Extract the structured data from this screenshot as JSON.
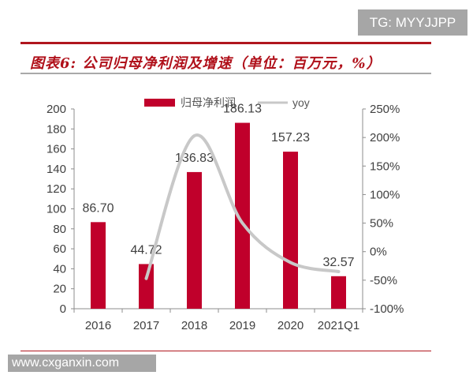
{
  "watermark_top": "TG: MYYJJPP",
  "watermark_bottom": "www.cxganxin.com",
  "colors": {
    "bar": "#c0002b",
    "line": "#c8c8c8",
    "title": "#b0101a"
  },
  "chart_data": {
    "type": "bar+line",
    "title": "图表6: 公司归母净利润及增速（单位：百万元，%）",
    "categories": [
      "2016",
      "2017",
      "2018",
      "2019",
      "2020",
      "2021Q1"
    ],
    "series": [
      {
        "name": "归母净利润",
        "type": "bar",
        "axis": "left",
        "values": [
          86.7,
          44.72,
          136.83,
          186.13,
          157.23,
          32.57
        ],
        "labels": [
          "86.70",
          "44.72",
          "136.83",
          "186.13",
          "157.23",
          "32.57"
        ]
      },
      {
        "name": "yoy",
        "type": "line",
        "axis": "right",
        "smooth": true,
        "values": [
          null,
          -47,
          203,
          50,
          -19,
          -35
        ]
      }
    ],
    "left_axis": {
      "range": [
        0,
        200
      ],
      "ticks": [
        "0",
        "20",
        "40",
        "60",
        "80",
        "100",
        "120",
        "140",
        "160",
        "180",
        "200"
      ]
    },
    "right_axis": {
      "range": [
        -100,
        250
      ],
      "ticks": [
        "-100%",
        "-50%",
        "0%",
        "50%",
        "100%",
        "150%",
        "200%",
        "250%"
      ]
    },
    "legend": "top",
    "grid": false
  }
}
